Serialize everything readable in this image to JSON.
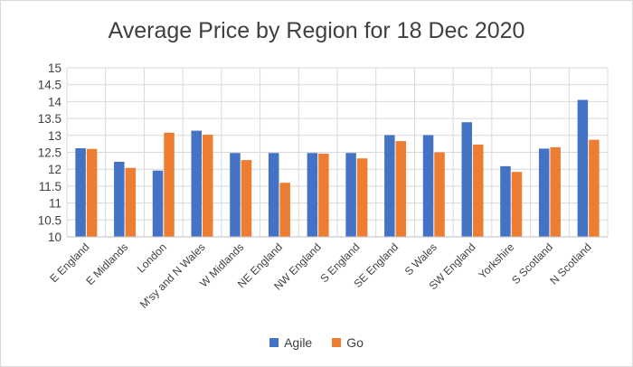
{
  "chart_data": {
    "type": "bar",
    "title": "Average Price by Region for 18 Dec 2020",
    "xlabel": "",
    "ylabel": "",
    "ylim": [
      10,
      15
    ],
    "yticks": [
      "10",
      "10.5",
      "11",
      "11.5",
      "12",
      "12.5",
      "13",
      "13.5",
      "14",
      "14.5",
      "15"
    ],
    "grid": true,
    "legend_position": "bottom",
    "categories": [
      "E England",
      "E Midlands",
      "London",
      "M'sy and N Wales",
      "W Midlands",
      "NE England",
      "NW England",
      "S England",
      "SE England",
      "S Wales",
      "SW England",
      "Yorkshire",
      "S Scotland",
      "N Scotland"
    ],
    "series": [
      {
        "name": "Agile",
        "color": "#4472c4",
        "values": [
          12.62,
          12.22,
          11.96,
          13.14,
          12.48,
          12.48,
          12.48,
          12.48,
          13.01,
          13.01,
          13.39,
          12.09,
          12.61,
          14.05
        ]
      },
      {
        "name": "Go",
        "color": "#ed7d31",
        "values": [
          12.6,
          12.04,
          13.08,
          13.02,
          12.27,
          11.6,
          12.46,
          12.32,
          12.83,
          12.5,
          12.73,
          11.92,
          12.65,
          12.87
        ]
      }
    ]
  }
}
